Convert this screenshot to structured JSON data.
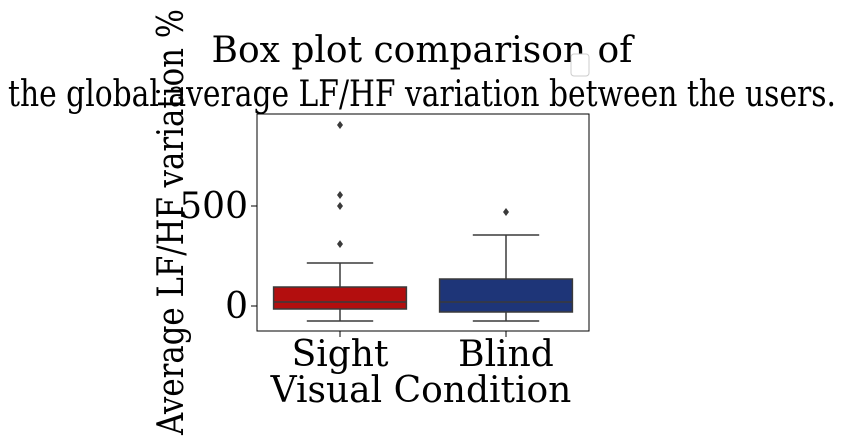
{
  "chart_data": {
    "type": "box",
    "title_lines": [
      "Box plot comparison of",
      "the global average LF/HF variation between the users."
    ],
    "xlabel": "Visual Condition",
    "ylabel": "Average LF/HF variation %",
    "categories": [
      "Sight",
      "Blind"
    ],
    "yticks": [
      0,
      500
    ],
    "ylim": [
      -125,
      960
    ],
    "legend": {
      "placement": "top-right",
      "entries": []
    },
    "grid": false,
    "series": [
      {
        "category": "Sight",
        "color": "#b30e0e",
        "whisker_low": -75,
        "q1": -15,
        "median": 20,
        "q3": 95,
        "whisker_high": 215,
        "outliers": [
          310,
          500,
          555,
          905
        ]
      },
      {
        "category": "Blind",
        "color": "#1e3578",
        "whisker_low": -75,
        "q1": -30,
        "median": 20,
        "q3": 135,
        "whisker_high": 355,
        "outliers": [
          470
        ]
      }
    ]
  }
}
